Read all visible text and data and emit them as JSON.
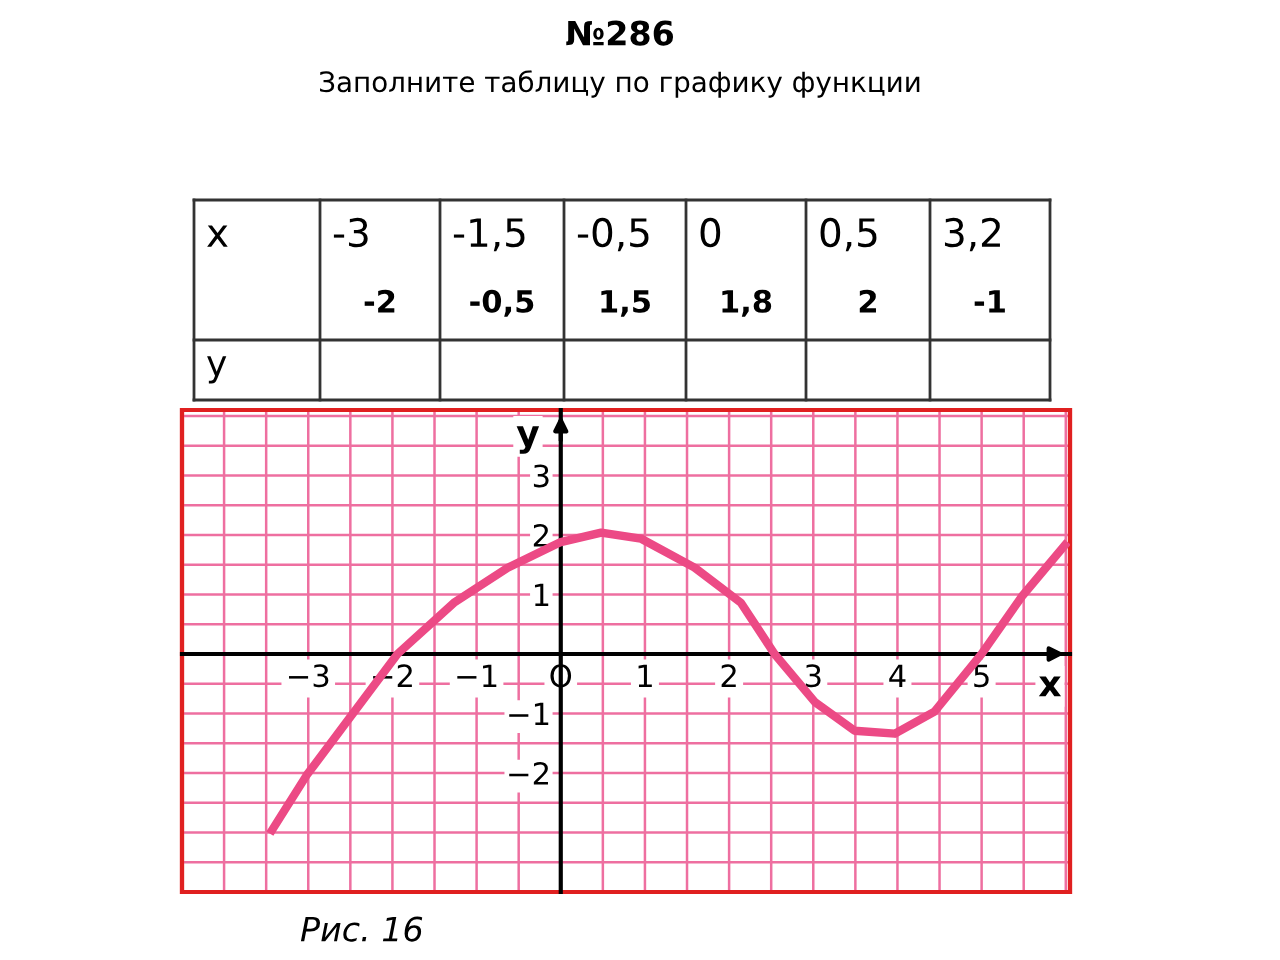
{
  "chart_data": {
    "type": "line",
    "title": "№286",
    "subtitle": "Заполните таблицу по графику функции",
    "xlabel": "x",
    "ylabel": "y",
    "annotations": [
      "x",
      "-3",
      "-1,5",
      "-0,5",
      "0",
      "0,5",
      "3,2",
      "y",
      "-2",
      "-0,5",
      "1,5",
      "1,8",
      "2",
      "-1",
      "Рис. 16"
    ],
    "x": [
      -3.43,
      -3.02,
      -1.94,
      -1.27,
      -0.63,
      0,
      0.48,
      0.95,
      1.59,
      2.14,
      2.54,
      3.02,
      3.49,
      3.97,
      4.44,
      5,
      5.48,
      5.99
    ],
    "series": [
      {
        "color": "#ec4a85",
        "values": [
          -2.96,
          -2.04,
          0,
          0.86,
          1.45,
          1.88,
          2.04,
          1.94,
          1.45,
          0.86,
          0,
          -0.81,
          -1.29,
          -1.34,
          -0.97,
          0,
          0.97,
          1.83
        ]
      }
    ],
    "xlim": [
      -4.5,
      6.05
    ],
    "ylim": [
      -4,
      4.1
    ],
    "xticks": [
      {
        "value": -3,
        "label": "−3"
      },
      {
        "value": -2,
        "label": "−2"
      },
      {
        "value": -1,
        "label": "−1"
      },
      {
        "value": 0,
        "label": "O"
      },
      1,
      2,
      3,
      4,
      5
    ],
    "yticks": [
      {
        "value": -2,
        "label": "−2"
      },
      {
        "value": -1,
        "label": "−1"
      },
      1,
      2,
      3
    ],
    "grid": true,
    "marker": "none",
    "line_style": "solid"
  }
}
